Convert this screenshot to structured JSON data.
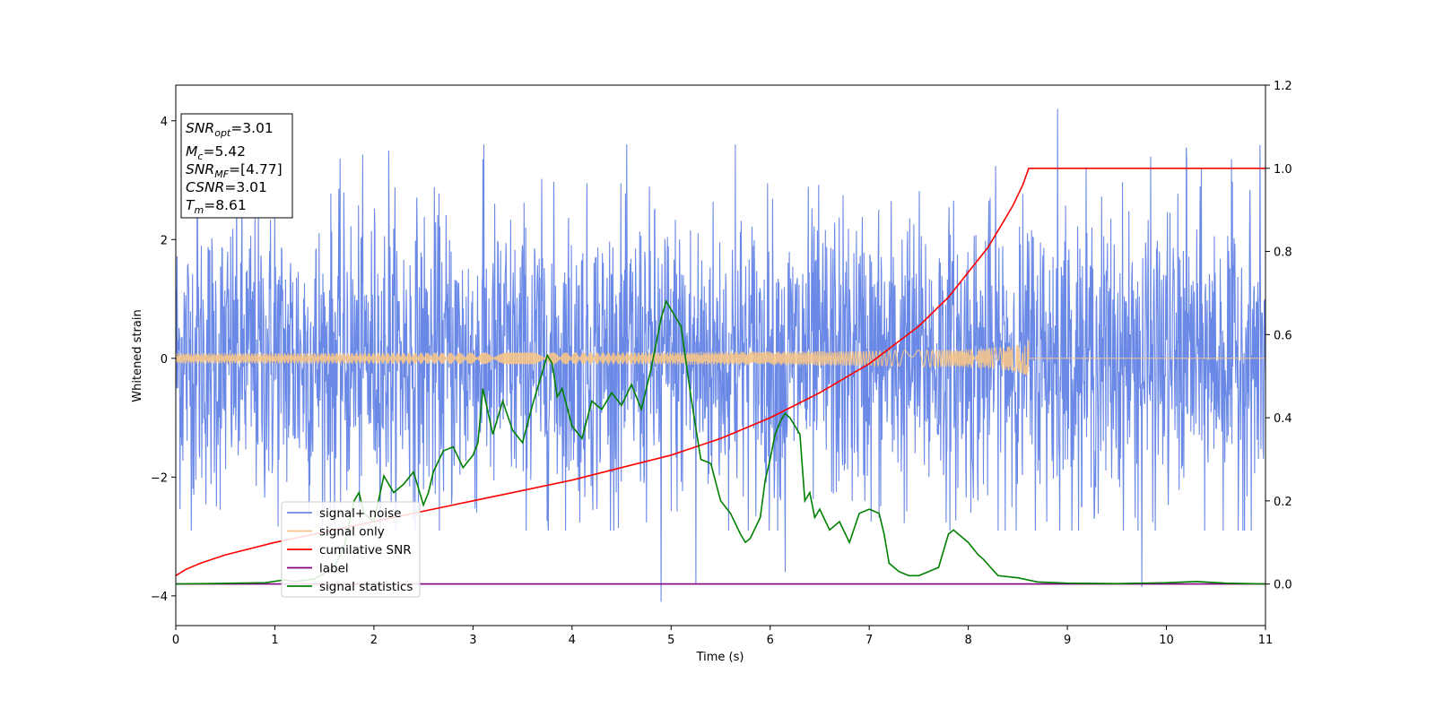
{
  "chart_data": {
    "type": "line",
    "xlabel": "Time (s)",
    "ylabel": "Whitened strain",
    "xlim": [
      0,
      11
    ],
    "ylim": [
      -4.5,
      4.6
    ],
    "y2lim": [
      -0.1,
      1.2
    ],
    "xticks": [
      0,
      1,
      2,
      3,
      4,
      5,
      6,
      7,
      8,
      9,
      10,
      11
    ],
    "yticks": [
      -4,
      -2,
      0,
      2,
      4
    ],
    "y2ticks": [
      "0.0",
      "0.2",
      "0.4",
      "0.6",
      "0.8",
      "1.0",
      "1.2"
    ],
    "grid": false,
    "legend_position": "lower-left",
    "info_box": {
      "snr_opt": "3.01",
      "mc": "5.42",
      "snr_mf": "[4.77]",
      "csnr": "3.01",
      "tm": "8.61"
    },
    "series": [
      {
        "name": "signal+ noise",
        "axis": "left",
        "color": "#6a88e6",
        "kind": "noise",
        "envelope_low": -2.9,
        "envelope_high": 3.6,
        "typical_amplitude": 1.3,
        "peaks": [
          [
            0.22,
            2.45
          ],
          [
            1.0,
            2.4
          ],
          [
            2.15,
            3.5
          ],
          [
            3.1,
            3.35
          ],
          [
            4.9,
            -4.1
          ],
          [
            5.25,
            -3.8
          ],
          [
            5.65,
            3.6
          ],
          [
            6.15,
            -3.6
          ],
          [
            8.9,
            4.2
          ],
          [
            10.2,
            3.55
          ],
          [
            9.75,
            -3.85
          ]
        ]
      },
      {
        "name": "signal only",
        "axis": "left",
        "color": "#f5c58a",
        "kind": "chirp",
        "end_time": 8.61,
        "final_amplitude": 0.35
      },
      {
        "name": "cumilative SNR",
        "axis": "right",
        "color": "#ff0000",
        "x": [
          0,
          0.1,
          0.25,
          0.5,
          1.0,
          1.5,
          2.0,
          2.5,
          3.0,
          3.5,
          4.0,
          4.5,
          5.0,
          5.5,
          6.0,
          6.5,
          7.0,
          7.5,
          7.8,
          8.0,
          8.2,
          8.35,
          8.45,
          8.55,
          8.61,
          11.0
        ],
        "y": [
          0.02,
          0.035,
          0.05,
          0.07,
          0.1,
          0.125,
          0.15,
          0.175,
          0.2,
          0.225,
          0.25,
          0.28,
          0.31,
          0.35,
          0.4,
          0.46,
          0.53,
          0.62,
          0.69,
          0.75,
          0.81,
          0.87,
          0.91,
          0.96,
          1.0,
          1.0
        ]
      },
      {
        "name": "label",
        "axis": "right",
        "color": "#800080",
        "x": [
          0,
          11
        ],
        "y": [
          0,
          0
        ]
      },
      {
        "name": "signal statistics",
        "axis": "right",
        "color": "#008000",
        "x": [
          0,
          0.3,
          0.6,
          0.9,
          1.1,
          1.2,
          1.4,
          1.6,
          1.7,
          1.8,
          1.85,
          1.9,
          2.0,
          2.1,
          2.2,
          2.3,
          2.4,
          2.5,
          2.55,
          2.6,
          2.7,
          2.8,
          2.9,
          3.0,
          3.05,
          3.1,
          3.2,
          3.3,
          3.4,
          3.5,
          3.6,
          3.7,
          3.75,
          3.8,
          3.85,
          3.9,
          4.0,
          4.1,
          4.2,
          4.3,
          4.4,
          4.5,
          4.6,
          4.7,
          4.8,
          4.9,
          4.95,
          5.0,
          5.1,
          5.2,
          5.3,
          5.4,
          5.5,
          5.6,
          5.7,
          5.75,
          5.8,
          5.9,
          5.95,
          6.0,
          6.05,
          6.1,
          6.15,
          6.2,
          6.3,
          6.35,
          6.4,
          6.45,
          6.5,
          6.6,
          6.7,
          6.8,
          6.9,
          7.0,
          7.1,
          7.15,
          7.2,
          7.3,
          7.4,
          7.5,
          7.6,
          7.7,
          7.8,
          7.85,
          7.9,
          8.0,
          8.1,
          8.15,
          8.3,
          8.5,
          8.7,
          9.0,
          9.5,
          10.0,
          10.3,
          10.6,
          11.0
        ],
        "y": [
          0.0,
          0.001,
          0.002,
          0.003,
          0.01,
          0.006,
          0.012,
          0.04,
          0.09,
          0.2,
          0.22,
          0.17,
          0.15,
          0.26,
          0.22,
          0.24,
          0.27,
          0.19,
          0.22,
          0.27,
          0.32,
          0.33,
          0.28,
          0.31,
          0.34,
          0.47,
          0.36,
          0.44,
          0.37,
          0.34,
          0.43,
          0.51,
          0.55,
          0.53,
          0.45,
          0.47,
          0.38,
          0.35,
          0.44,
          0.42,
          0.46,
          0.43,
          0.48,
          0.42,
          0.52,
          0.64,
          0.68,
          0.66,
          0.62,
          0.45,
          0.3,
          0.29,
          0.2,
          0.17,
          0.12,
          0.1,
          0.11,
          0.16,
          0.25,
          0.3,
          0.36,
          0.39,
          0.41,
          0.4,
          0.36,
          0.2,
          0.22,
          0.16,
          0.18,
          0.13,
          0.15,
          0.1,
          0.17,
          0.18,
          0.17,
          0.12,
          0.05,
          0.03,
          0.02,
          0.02,
          0.03,
          0.04,
          0.12,
          0.13,
          0.12,
          0.1,
          0.07,
          0.06,
          0.02,
          0.015,
          0.005,
          0.002,
          0.001,
          0.003,
          0.006,
          0.002,
          0.0
        ]
      }
    ]
  }
}
